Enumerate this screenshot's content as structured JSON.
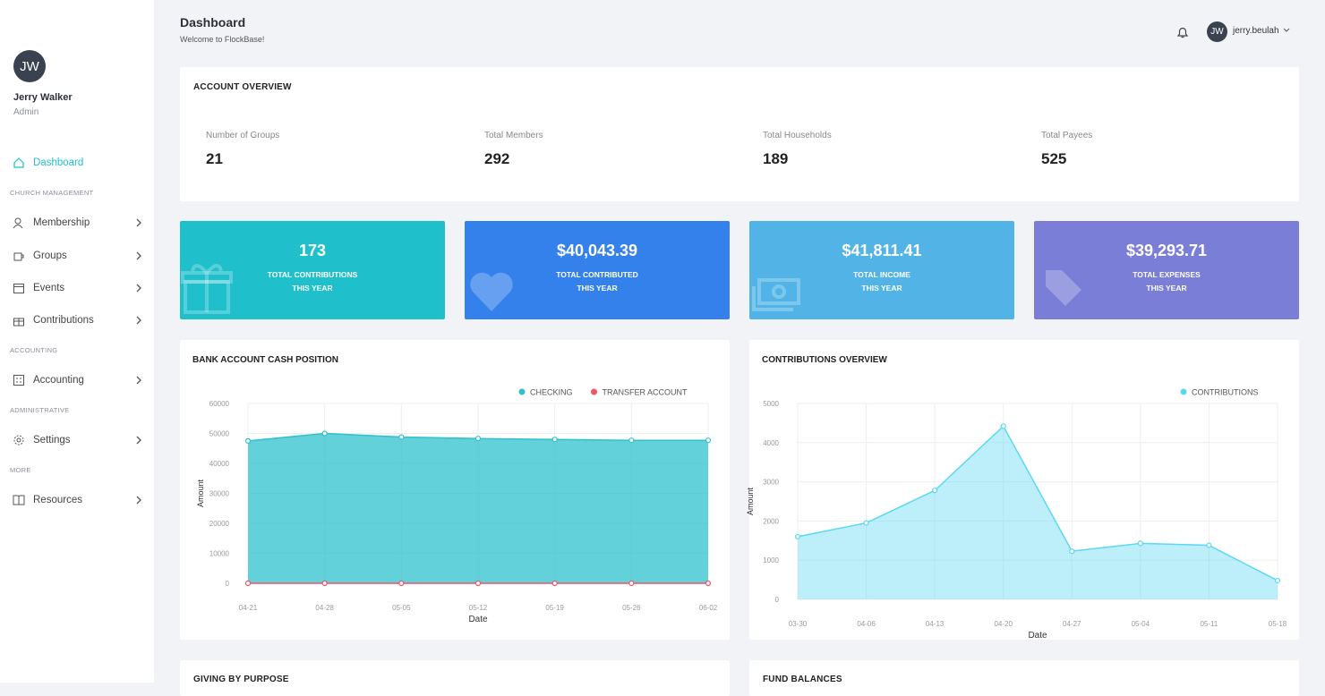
{
  "sidebar": {
    "avatar": "JW",
    "user_name": "Jerry Walker",
    "role": "Admin",
    "nav": [
      {
        "label": "Dashboard"
      },
      {
        "heading": "CHURCH MANAGEMENT"
      },
      {
        "label": "Membership"
      },
      {
        "label": "Groups"
      },
      {
        "label": "Events"
      },
      {
        "label": "Contributions"
      },
      {
        "heading": "ACCOUNTING"
      },
      {
        "label": "Accounting"
      },
      {
        "heading": "ADMINISTRATIVE"
      },
      {
        "label": "Settings"
      },
      {
        "heading": "MORE"
      },
      {
        "label": "Resources"
      }
    ]
  },
  "header": {
    "title": "Dashboard",
    "subtitle": "Welcome to FlockBase!",
    "avatar": "JW",
    "user": "jerry.beulah"
  },
  "account_overview": {
    "title": "ACCOUNT OVERVIEW",
    "stats": [
      {
        "label": "Number of Groups",
        "value": 21
      },
      {
        "label": "Total Members",
        "value": 292
      },
      {
        "label": "Total Households",
        "value": 189
      },
      {
        "label": "Total Payees",
        "value": 525
      }
    ]
  },
  "stat_cards": [
    {
      "value": "173",
      "label": [
        "TOTAL CONTRIBUTIONS",
        "THIS YEAR"
      ],
      "color": "#1fbfcb"
    },
    {
      "value": "$40,043.39",
      "label": [
        "TOTAL CONTRIBUTED",
        "THIS YEAR"
      ],
      "color": "#3581ec"
    },
    {
      "value": "$41,811.41",
      "label": [
        "TOTAL INCOME",
        "THIS YEAR"
      ],
      "color": "#52b4e6"
    },
    {
      "value": "$39,293.71",
      "label": [
        "TOTAL EXPENSES",
        "THIS YEAR"
      ],
      "color": "#7a7ed6"
    }
  ],
  "charts": [
    {
      "type": "area",
      "title": "BANK ACCOUNT CASH POSITION",
      "x_label": "Date",
      "y_label": "Amount",
      "x": [
        "04-21",
        "04-28",
        "05-05",
        "05-12",
        "05-19",
        "05-26",
        "06-02"
      ],
      "series": [
        {
          "name": "CHECKING",
          "color": "#2fc1cc",
          "values": [
            47500,
            50000,
            48800,
            48300,
            48000,
            47700,
            47700
          ]
        },
        {
          "name": "TRANSFER ACCOUNT",
          "color": "#ee5566",
          "values": [
            0,
            0,
            0,
            0,
            0,
            0,
            0
          ]
        }
      ],
      "ylim": [
        0,
        60000
      ],
      "yticks": [
        0,
        10000,
        20000,
        30000,
        40000,
        50000,
        60000
      ],
      "grid": true
    },
    {
      "type": "area",
      "title": "CONTRIBUTIONS OVERVIEW",
      "x_label": "Date",
      "y_label": "Amount",
      "x": [
        "03-30",
        "04-06",
        "04-13",
        "04-20",
        "04-27",
        "05-04",
        "05-11",
        "05-18"
      ],
      "series": [
        {
          "name": "CONTRIBUTIONS",
          "color": "#5ad8f2",
          "values": [
            1600,
            1950,
            2780,
            4420,
            1230,
            1430,
            1380,
            480
          ]
        }
      ],
      "ylim": [
        0,
        5000
      ],
      "yticks": [
        0,
        1000,
        2000,
        3000,
        4000,
        5000
      ],
      "grid": true
    }
  ],
  "bottom_cards": [
    "GIVING BY PURPOSE",
    "FUND BALANCES"
  ]
}
